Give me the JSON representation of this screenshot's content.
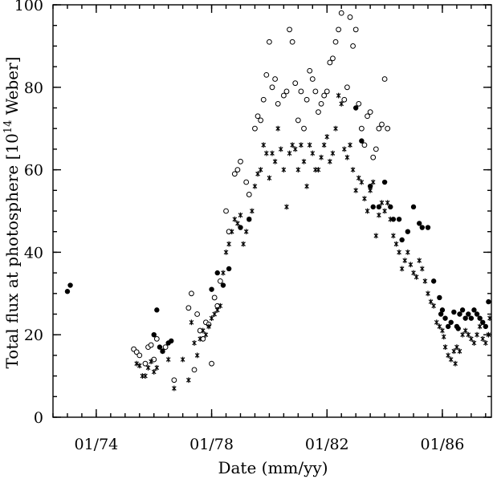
{
  "chart_data": {
    "type": "scatter",
    "title": "",
    "xlabel": "Date (mm/yy)",
    "ylabel": "Total flux at photosphere [10",
    "ylabel_exponent": "14",
    "ylabel_unit": " Weber]",
    "x_unit": "year (decimal)",
    "xlim": [
      1972.5,
      1987.7
    ],
    "ylim": [
      0,
      100
    ],
    "x_ticks": [
      {
        "value": 1974,
        "label": "01/74"
      },
      {
        "value": 1978,
        "label": "01/78"
      },
      {
        "value": 1982,
        "label": "01/82"
      },
      {
        "value": 1986,
        "label": "01/86"
      }
    ],
    "y_ticks": [
      {
        "value": 0,
        "label": "0"
      },
      {
        "value": 20,
        "label": "20"
      },
      {
        "value": 40,
        "label": "40"
      },
      {
        "value": 60,
        "label": "60"
      },
      {
        "value": 80,
        "label": "80"
      },
      {
        "value": 100,
        "label": "100"
      }
    ],
    "x_minor_step": 0.5,
    "y_minor_step": 5,
    "series": [
      {
        "marker": "open-circle",
        "points": [
          [
            1975.3,
            16.5
          ],
          [
            1975.4,
            15.8
          ],
          [
            1975.5,
            15.0
          ],
          [
            1975.7,
            13.0
          ],
          [
            1975.8,
            17.0
          ],
          [
            1975.9,
            17.5
          ],
          [
            1976.0,
            14.0
          ],
          [
            1976.1,
            19.0
          ],
          [
            1976.4,
            17.0
          ],
          [
            1976.7,
            9.0
          ],
          [
            1977.2,
            26.5
          ],
          [
            1977.3,
            30.0
          ],
          [
            1977.4,
            11.5
          ],
          [
            1977.5,
            25.0
          ],
          [
            1977.6,
            21.0
          ],
          [
            1977.7,
            19.0
          ],
          [
            1977.8,
            23.0
          ],
          [
            1977.9,
            22.5
          ],
          [
            1978.0,
            13.0
          ],
          [
            1978.1,
            29.0
          ],
          [
            1978.2,
            27.0
          ],
          [
            1978.3,
            33.0
          ],
          [
            1978.5,
            50.0
          ],
          [
            1978.6,
            45.0
          ],
          [
            1978.8,
            59.0
          ],
          [
            1978.9,
            60.0
          ],
          [
            1979.0,
            62.0
          ],
          [
            1979.2,
            57.0
          ],
          [
            1979.3,
            54.0
          ],
          [
            1979.5,
            70.0
          ],
          [
            1979.6,
            73.0
          ],
          [
            1979.7,
            72.0
          ],
          [
            1979.8,
            77.0
          ],
          [
            1979.9,
            83.0
          ],
          [
            1980.0,
            91.0
          ],
          [
            1980.1,
            80.0
          ],
          [
            1980.2,
            82.0
          ],
          [
            1980.3,
            76.0
          ],
          [
            1980.5,
            78.0
          ],
          [
            1980.6,
            79.0
          ],
          [
            1980.7,
            94.0
          ],
          [
            1980.8,
            91.0
          ],
          [
            1980.9,
            81.0
          ],
          [
            1981.0,
            72.0
          ],
          [
            1981.1,
            79.0
          ],
          [
            1981.2,
            70.0
          ],
          [
            1981.3,
            77.0
          ],
          [
            1981.4,
            84.0
          ],
          [
            1981.5,
            82.0
          ],
          [
            1981.6,
            79.0
          ],
          [
            1981.7,
            74.0
          ],
          [
            1981.8,
            76.0
          ],
          [
            1981.9,
            78.0
          ],
          [
            1982.0,
            79.0
          ],
          [
            1982.1,
            86.0
          ],
          [
            1982.2,
            87.0
          ],
          [
            1982.3,
            91.0
          ],
          [
            1982.4,
            94.0
          ],
          [
            1982.5,
            98.0
          ],
          [
            1982.6,
            77.0
          ],
          [
            1982.7,
            80.0
          ],
          [
            1982.8,
            97.0
          ],
          [
            1982.9,
            90.0
          ],
          [
            1983.0,
            94.0
          ],
          [
            1983.1,
            76.0
          ],
          [
            1983.2,
            70.0
          ],
          [
            1983.3,
            66.0
          ],
          [
            1983.4,
            73.0
          ],
          [
            1983.5,
            74.0
          ],
          [
            1983.6,
            63.0
          ],
          [
            1983.7,
            65.0
          ],
          [
            1983.8,
            70.0
          ],
          [
            1983.9,
            71.0
          ],
          [
            1984.0,
            82.0
          ],
          [
            1984.1,
            70.0
          ]
        ]
      },
      {
        "marker": "filled-circle",
        "points": [
          [
            1973.0,
            30.5
          ],
          [
            1973.1,
            32.0
          ],
          [
            1976.0,
            20.0
          ],
          [
            1976.1,
            26.0
          ],
          [
            1976.2,
            17.0
          ],
          [
            1976.3,
            16.0
          ],
          [
            1976.5,
            18.0
          ],
          [
            1976.6,
            18.5
          ],
          [
            1978.0,
            31.0
          ],
          [
            1978.2,
            35.0
          ],
          [
            1978.4,
            32.0
          ],
          [
            1978.6,
            36.0
          ],
          [
            1979.0,
            46.0
          ],
          [
            1979.3,
            48.0
          ],
          [
            1983.0,
            75.0
          ],
          [
            1983.2,
            67.0
          ],
          [
            1983.5,
            56.0
          ],
          [
            1983.6,
            51.0
          ],
          [
            1983.8,
            51.0
          ],
          [
            1984.0,
            57.0
          ],
          [
            1984.2,
            51.0
          ],
          [
            1984.3,
            48.0
          ],
          [
            1984.5,
            48.0
          ],
          [
            1984.6,
            43.0
          ],
          [
            1984.8,
            45.0
          ],
          [
            1985.0,
            51.0
          ],
          [
            1985.2,
            47.0
          ],
          [
            1985.3,
            46.0
          ],
          [
            1985.5,
            46.0
          ],
          [
            1985.7,
            33.0
          ],
          [
            1985.9,
            29.0
          ],
          [
            1986.0,
            26.0
          ],
          [
            1986.2,
            22.0
          ],
          [
            1986.3,
            23.0
          ],
          [
            1986.5,
            22.0
          ],
          [
            1986.6,
            25.0
          ],
          [
            1986.7,
            26.0
          ],
          [
            1986.8,
            24.0
          ],
          [
            1986.9,
            25.0
          ],
          [
            1987.0,
            24.0
          ],
          [
            1987.1,
            26.0
          ],
          [
            1987.2,
            25.0
          ],
          [
            1987.3,
            24.0
          ],
          [
            1987.4,
            23.0
          ],
          [
            1987.5,
            22.0
          ],
          [
            1986.4,
            25.5
          ],
          [
            1986.1,
            24.0
          ],
          [
            1985.95,
            25.0
          ],
          [
            1986.55,
            21.5
          ],
          [
            1987.6,
            28.0
          ]
        ]
      },
      {
        "marker": "asterisk",
        "points": [
          [
            1975.4,
            13.0
          ],
          [
            1975.5,
            12.5
          ],
          [
            1975.6,
            10.0
          ],
          [
            1975.7,
            10.0
          ],
          [
            1975.8,
            12.0
          ],
          [
            1975.9,
            13.5
          ],
          [
            1976.0,
            11.0
          ],
          [
            1976.1,
            12.0
          ],
          [
            1976.3,
            16.0
          ],
          [
            1976.5,
            14.0
          ],
          [
            1976.7,
            7.0
          ],
          [
            1977.0,
            14.0
          ],
          [
            1977.2,
            9.0
          ],
          [
            1977.3,
            23.0
          ],
          [
            1977.4,
            18.0
          ],
          [
            1977.5,
            15.0
          ],
          [
            1977.6,
            19.0
          ],
          [
            1977.7,
            21.0
          ],
          [
            1977.8,
            20.0
          ],
          [
            1977.9,
            22.0
          ],
          [
            1978.0,
            24.0
          ],
          [
            1978.1,
            25.0
          ],
          [
            1978.2,
            26.0
          ],
          [
            1978.3,
            27.0
          ],
          [
            1978.4,
            35.0
          ],
          [
            1978.5,
            40.0
          ],
          [
            1978.6,
            42.0
          ],
          [
            1978.7,
            45.0
          ],
          [
            1978.8,
            48.0
          ],
          [
            1978.9,
            47.0
          ],
          [
            1979.0,
            49.0
          ],
          [
            1979.1,
            42.0
          ],
          [
            1979.2,
            45.0
          ],
          [
            1979.3,
            48.0
          ],
          [
            1979.4,
            50.0
          ],
          [
            1979.5,
            56.0
          ],
          [
            1979.6,
            59.0
          ],
          [
            1979.7,
            60.0
          ],
          [
            1979.8,
            66.0
          ],
          [
            1979.9,
            64.0
          ],
          [
            1980.0,
            58.0
          ],
          [
            1980.1,
            64.0
          ],
          [
            1980.2,
            62.0
          ],
          [
            1980.3,
            70.0
          ],
          [
            1980.4,
            65.0
          ],
          [
            1980.5,
            60.0
          ],
          [
            1980.6,
            51.0
          ],
          [
            1980.7,
            64.0
          ],
          [
            1980.8,
            66.0
          ],
          [
            1980.9,
            65.0
          ],
          [
            1981.0,
            60.0
          ],
          [
            1981.1,
            66.0
          ],
          [
            1981.2,
            62.0
          ],
          [
            1981.3,
            56.0
          ],
          [
            1981.4,
            66.0
          ],
          [
            1981.5,
            64.0
          ],
          [
            1981.6,
            60.0
          ],
          [
            1981.7,
            60.0
          ],
          [
            1981.8,
            63.0
          ],
          [
            1981.9,
            66.0
          ],
          [
            1982.0,
            68.0
          ],
          [
            1982.1,
            62.0
          ],
          [
            1982.2,
            64.0
          ],
          [
            1982.3,
            70.0
          ],
          [
            1982.4,
            78.0
          ],
          [
            1982.5,
            76.0
          ],
          [
            1982.6,
            65.0
          ],
          [
            1982.7,
            63.0
          ],
          [
            1982.8,
            66.0
          ],
          [
            1982.9,
            60.0
          ],
          [
            1983.0,
            55.0
          ],
          [
            1983.1,
            58.0
          ],
          [
            1983.2,
            57.0
          ],
          [
            1983.3,
            53.0
          ],
          [
            1983.4,
            50.0
          ],
          [
            1983.5,
            55.0
          ],
          [
            1983.6,
            57.0
          ],
          [
            1983.7,
            44.0
          ],
          [
            1983.8,
            49.0
          ],
          [
            1983.9,
            52.0
          ],
          [
            1984.0,
            50.0
          ],
          [
            1984.1,
            52.0
          ],
          [
            1984.2,
            48.0
          ],
          [
            1984.3,
            44.0
          ],
          [
            1984.4,
            42.0
          ],
          [
            1984.5,
            40.0
          ],
          [
            1984.6,
            36.0
          ],
          [
            1984.7,
            38.0
          ],
          [
            1984.8,
            40.0
          ],
          [
            1984.9,
            37.0
          ],
          [
            1985.0,
            35.0
          ],
          [
            1985.1,
            34.0
          ],
          [
            1985.2,
            38.0
          ],
          [
            1985.3,
            36.0
          ],
          [
            1985.4,
            33.0
          ],
          [
            1985.5,
            30.0
          ],
          [
            1985.6,
            28.0
          ],
          [
            1985.7,
            27.0
          ],
          [
            1985.8,
            23.0
          ],
          [
            1985.9,
            22.0
          ],
          [
            1986.0,
            21.0
          ],
          [
            1986.1,
            17.0
          ],
          [
            1986.2,
            15.0
          ],
          [
            1986.3,
            14.0
          ],
          [
            1986.4,
            16.0
          ],
          [
            1986.5,
            17.0
          ],
          [
            1986.6,
            16.0
          ],
          [
            1986.7,
            20.0
          ],
          [
            1986.8,
            21.0
          ],
          [
            1986.9,
            20.0
          ],
          [
            1987.0,
            19.0
          ],
          [
            1987.1,
            18.0
          ],
          [
            1987.2,
            20.0
          ],
          [
            1987.3,
            22.0
          ],
          [
            1987.4,
            19.0
          ],
          [
            1987.5,
            18.0
          ],
          [
            1987.6,
            20.0
          ],
          [
            1987.7,
            24.0
          ],
          [
            1986.45,
            13.0
          ],
          [
            1986.05,
            19.5
          ]
        ]
      }
    ]
  }
}
